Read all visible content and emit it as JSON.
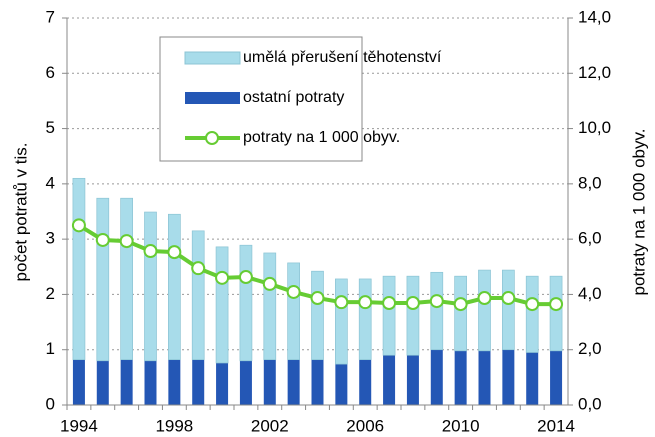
{
  "chart_data": {
    "type": "bar",
    "categories": [
      "1994",
      null,
      null,
      null,
      "1998",
      null,
      null,
      null,
      "2002",
      null,
      null,
      null,
      "2006",
      null,
      null,
      null,
      "2010",
      null,
      null,
      null,
      "2014"
    ],
    "series": [
      {
        "name": "umělá přerušení těhotenství",
        "color": "#a8dcea",
        "type": "bar",
        "values": [
          3.28,
          2.94,
          2.92,
          2.69,
          2.63,
          2.33,
          2.1,
          2.09,
          1.93,
          1.75,
          1.6,
          1.54,
          1.46,
          1.43,
          1.43,
          1.4,
          1.35,
          1.46,
          1.44,
          1.38,
          1.35
        ]
      },
      {
        "name": "ostatní potraty",
        "color": "#2457b5",
        "type": "bar",
        "values": [
          0.82,
          0.8,
          0.82,
          0.8,
          0.82,
          0.82,
          0.76,
          0.8,
          0.82,
          0.82,
          0.82,
          0.74,
          0.82,
          0.9,
          0.9,
          1.0,
          0.98,
          0.98,
          1.0,
          0.95,
          0.98
        ]
      },
      {
        "name": "potraty na 1 000 obyv.",
        "color": "#66cc33",
        "type": "line",
        "axis": "y2",
        "values": [
          6.5,
          5.97,
          5.93,
          5.57,
          5.53,
          4.95,
          4.6,
          4.63,
          4.38,
          4.09,
          3.87,
          3.72,
          3.72,
          3.69,
          3.69,
          3.76,
          3.65,
          3.87,
          3.87,
          3.65,
          3.65
        ]
      }
    ],
    "y_label": "počet potratů v tis.",
    "y2_label": "potraty na 1 000 obyv.",
    "ylim": [
      0,
      7
    ],
    "yticks": [
      0,
      1,
      2,
      3,
      4,
      5,
      6,
      7
    ],
    "y2lim": [
      0,
      14
    ],
    "y2ticks": [
      {
        "value": 0,
        "label": "0,0"
      },
      {
        "value": 2,
        "label": "2,0"
      },
      {
        "value": 4,
        "label": "4,0"
      },
      {
        "value": 6,
        "label": "6,0"
      },
      {
        "value": 8,
        "label": "8,0"
      },
      {
        "value": 10,
        "label": "10,0"
      },
      {
        "value": 12,
        "label": "12,0"
      },
      {
        "value": 14,
        "label": "14,0"
      }
    ],
    "grid": true
  }
}
